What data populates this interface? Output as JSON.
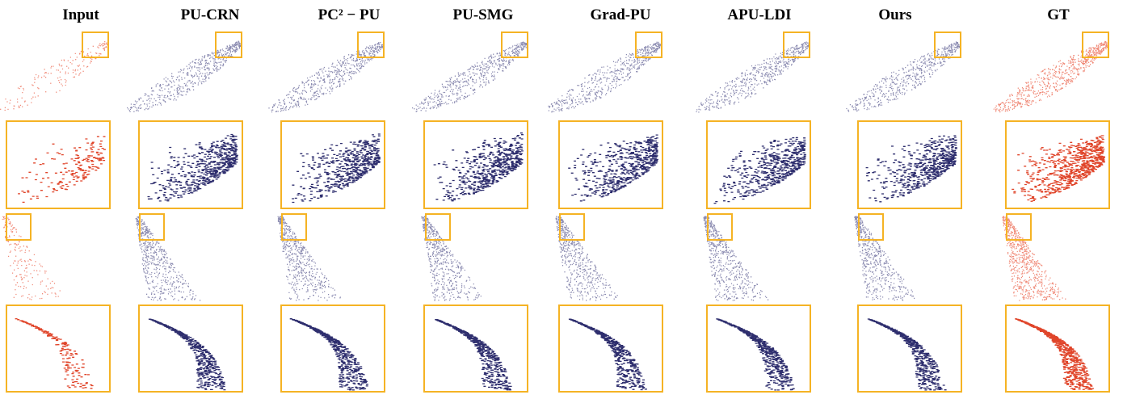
{
  "headers": [
    "Input",
    "PU-CRN",
    "PC² − PU",
    "PU-SMG",
    "Grad-PU",
    "APU-LDI",
    "Ours",
    "GT"
  ]
}
